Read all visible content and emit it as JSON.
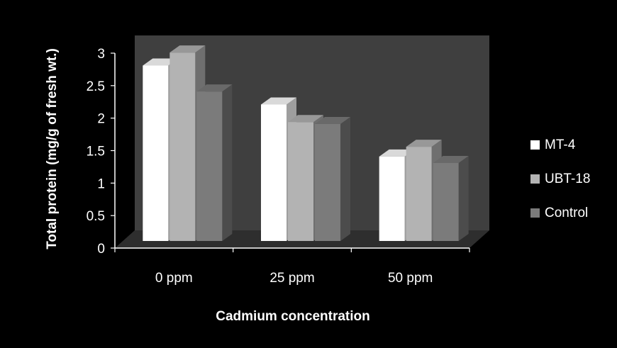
{
  "chart_data": {
    "type": "bar",
    "style": "3d-clustered-column",
    "categories": [
      "0 ppm",
      "25 ppm",
      "50 ppm"
    ],
    "series": [
      {
        "name": "MT-4",
        "color": "#ffffff",
        "values": [
          2.7,
          2.1,
          1.3
        ]
      },
      {
        "name": "UBT-18",
        "color": "#b3b3b3",
        "values": [
          2.9,
          1.83,
          1.45
        ]
      },
      {
        "name": "Control",
        "color": "#7b7b7b",
        "values": [
          2.3,
          1.8,
          1.2
        ]
      }
    ],
    "yticks": [
      "0",
      "0.5",
      "1",
      "1.5",
      "2",
      "2.5",
      "3"
    ],
    "ylim": [
      0,
      3
    ],
    "xlabel": "Cadmium concentration",
    "ylabel": "Total protein (mg/g of fresh wt.)",
    "title": "",
    "legend_position": "right",
    "grid": false,
    "colors": {
      "background": "#000000",
      "back_wall": "#3f3f3f",
      "floor": "#2e2e2e",
      "text": "#ffffff"
    }
  }
}
